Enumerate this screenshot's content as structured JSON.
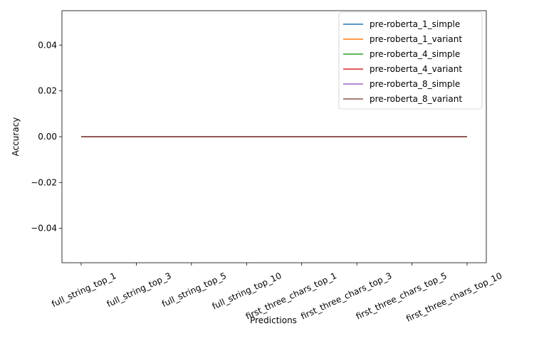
{
  "chart_data": {
    "type": "line",
    "title": "",
    "xlabel": "Predictions",
    "ylabel": "Accuracy",
    "categories": [
      "full_string_top_1",
      "full_string_top_3",
      "full_string_top_5",
      "full_string_top_10",
      "first_three_chars_top_1",
      "first_three_chars_top_3",
      "first_three_chars_top_5",
      "first_three_chars_top_10"
    ],
    "ylim": [
      -0.055,
      0.055
    ],
    "yticks": [
      -0.04,
      -0.02,
      0.0,
      0.02,
      0.04
    ],
    "ytick_labels": [
      "−0.04",
      "−0.02",
      "0.00",
      "0.02",
      "0.04"
    ],
    "grid": false,
    "legend_position": "top-right",
    "series": [
      {
        "name": "pre-roberta_1_simple",
        "color": "#1f77b4",
        "values": [
          0,
          0,
          0,
          0,
          0,
          0,
          0,
          0
        ]
      },
      {
        "name": "pre-roberta_1_variant",
        "color": "#ff7f0e",
        "values": [
          0,
          0,
          0,
          0,
          0,
          0,
          0,
          0
        ]
      },
      {
        "name": "pre-roberta_4_simple",
        "color": "#2ca02c",
        "values": [
          0,
          0,
          0,
          0,
          0,
          0,
          0,
          0
        ]
      },
      {
        "name": "pre-roberta_4_variant",
        "color": "#d62728",
        "values": [
          0,
          0,
          0,
          0,
          0,
          0,
          0,
          0
        ]
      },
      {
        "name": "pre-roberta_8_simple",
        "color": "#9467bd",
        "values": [
          0,
          0,
          0,
          0,
          0,
          0,
          0,
          0
        ]
      },
      {
        "name": "pre-roberta_8_variant",
        "color": "#8c564b",
        "values": [
          0,
          0,
          0,
          0,
          0,
          0,
          0,
          0
        ]
      }
    ]
  }
}
